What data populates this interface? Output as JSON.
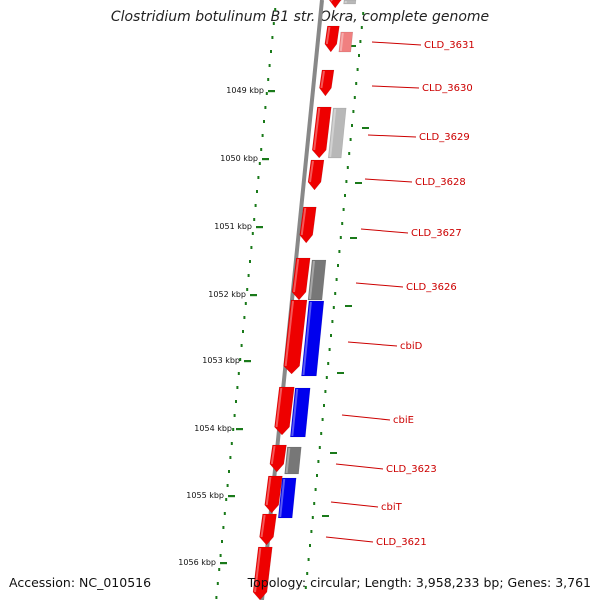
{
  "title": "Clostridium botulinum B1 str. Okra, complete genome",
  "footer": {
    "accession": "Accession: NC_010516",
    "topology": "Topology: circular; Length: 3,958,233 bp; Genes: 3,761"
  },
  "scale_ticks": [
    "1049 kbp",
    "1050 kbp",
    "1051 kbp",
    "1052 kbp",
    "1053 kbp",
    "1054 kbp",
    "1055 kbp",
    "1056 kbp"
  ],
  "gene_labels": [
    "CLD_3631",
    "CLD_3630",
    "CLD_3629",
    "CLD_3628",
    "CLD_3627",
    "CLD_3626",
    "cbiD",
    "cbiE",
    "CLD_3623",
    "cbiT",
    "CLD_3621"
  ],
  "colors": {
    "gene_red": "#ee0000",
    "gene_blue": "#0000ee",
    "gene_gray": "#777777",
    "gene_light_gray": "#b8b8b8",
    "gene_pink": "#f08080",
    "label_red": "#cc0000",
    "tick_green": "#1a7a1a",
    "backbone": "#888888"
  }
}
